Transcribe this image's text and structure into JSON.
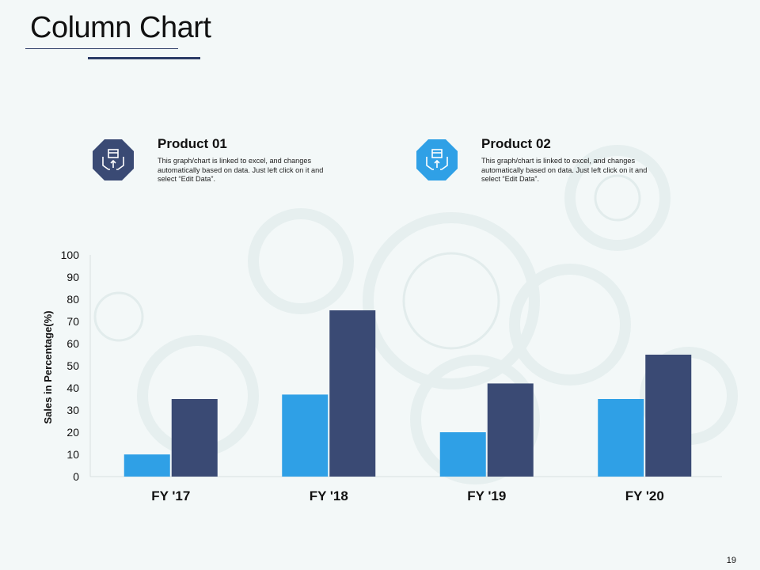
{
  "slide": {
    "title": "Column Chart",
    "page_number": "19"
  },
  "legend": [
    {
      "heading": "Product 01",
      "description": "This graph/chart is linked to excel, and changes automatically based on data. Just left click on it and select “Edit Data”.",
      "color": "#3a4a74",
      "icon": "hands-box-icon"
    },
    {
      "heading": "Product 02",
      "description": "This graph/chart is linked to excel, and changes automatically based on data. Just left click on it and select “Edit Data”.",
      "color": "#2fa0e6",
      "icon": "hands-box-icon"
    }
  ],
  "chart_data": {
    "type": "bar",
    "categories": [
      "FY '17",
      "FY '18",
      "FY '19",
      "FY '20"
    ],
    "series": [
      {
        "name": "Product 02",
        "color": "#2fa0e6",
        "values": [
          10,
          37,
          20,
          35
        ]
      },
      {
        "name": "Product 01",
        "color": "#3a4a74",
        "values": [
          35,
          75,
          42,
          55
        ]
      }
    ],
    "title": "",
    "xlabel": "",
    "ylabel": "Sales in Percentage(%)",
    "ylim": [
      0,
      100
    ],
    "yticks": [
      0,
      10,
      20,
      30,
      40,
      50,
      60,
      70,
      80,
      90,
      100
    ],
    "grid": false
  }
}
